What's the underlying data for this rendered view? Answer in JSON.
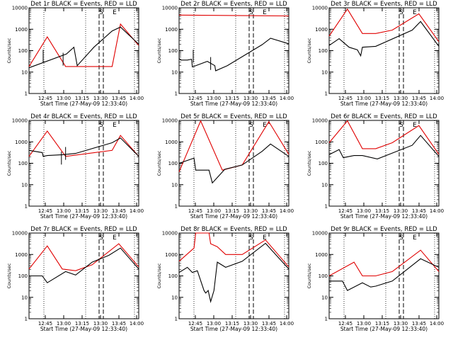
{
  "chart_data": [
    {
      "title": "Det 1r BLACK = Events, RED = LLD",
      "black": [
        [
          0,
          60
        ],
        [
          45,
          92
        ],
        [
          54,
          108
        ],
        [
          58,
          65
        ],
        [
          78,
          108
        ],
        [
          100,
          146
        ],
        [
          110,
          155
        ],
        [
          132,
          115
        ]
      ],
      "red": [
        [
          0,
          63
        ],
        [
          22,
          132
        ],
        [
          44,
          63
        ],
        [
          100,
          63
        ],
        [
          110,
          162
        ],
        [
          132,
          112
        ]
      ],
      "dips": [
        [
          17,
          72
        ],
        [
          41,
          65
        ]
      ]
    },
    {
      "title": "Det 2r BLACK = Events, RED = LLD",
      "black": [
        [
          0,
          82
        ],
        [
          2,
          78
        ],
        [
          10,
          78
        ],
        [
          15,
          80
        ],
        [
          16,
          62
        ],
        [
          34,
          75
        ],
        [
          43,
          65
        ],
        [
          44,
          53
        ],
        [
          58,
          65
        ],
        [
          100,
          114
        ],
        [
          110,
          129
        ],
        [
          132,
          116
        ]
      ],
      "red": [
        [
          0,
          183
        ],
        [
          132,
          181
        ]
      ],
      "dips": [
        [
          17,
          72
        ],
        [
          38,
          55
        ]
      ]
    },
    {
      "title": "Det 3r BLACK = Events, RED = LLD",
      "black": [
        [
          0,
          112
        ],
        [
          12,
          128
        ],
        [
          24,
          108
        ],
        [
          34,
          102
        ],
        [
          38,
          88
        ],
        [
          40,
          108
        ],
        [
          56,
          110
        ],
        [
          100,
          148
        ],
        [
          110,
          168
        ],
        [
          132,
          110
        ]
      ],
      "red": [
        [
          0,
          134
        ],
        [
          22,
          197
        ],
        [
          40,
          140
        ],
        [
          56,
          140
        ],
        [
          76,
          148
        ],
        [
          108,
          186
        ],
        [
          132,
          121
        ]
      ],
      "dips": []
    },
    {
      "title": "Det 4r BLACK = Events, RED = LLD",
      "black": [
        [
          0,
          130
        ],
        [
          16,
          125
        ],
        [
          17,
          116
        ],
        [
          22,
          118
        ],
        [
          40,
          120
        ],
        [
          56,
          123
        ],
        [
          100,
          148
        ],
        [
          110,
          159
        ],
        [
          132,
          116
        ]
      ],
      "red": [
        [
          0,
          116
        ],
        [
          22,
          175
        ],
        [
          44,
          116
        ],
        [
          100,
          130
        ],
        [
          110,
          165
        ],
        [
          132,
          116
        ]
      ],
      "dips": [
        [
          39,
          97
        ],
        [
          44,
          108
        ]
      ]
    },
    {
      "title": "Det 5r BLACK = Events, RED = LLD",
      "black": [
        [
          0,
          100
        ],
        [
          18,
          112
        ],
        [
          20,
          84
        ],
        [
          36,
          84
        ],
        [
          40,
          54
        ],
        [
          55,
          86
        ],
        [
          76,
          96
        ],
        [
          100,
          128
        ],
        [
          110,
          145
        ],
        [
          132,
          116
        ]
      ],
      "red": [
        [
          0,
          80
        ],
        [
          26,
          199
        ],
        [
          52,
          84
        ],
        [
          76,
          96
        ],
        [
          108,
          197
        ],
        [
          132,
          121
        ]
      ],
      "dips": []
    },
    {
      "title": "Det 6r BLACK = Events, RED = LLD",
      "black": [
        [
          0,
          120
        ],
        [
          12,
          132
        ],
        [
          17,
          113
        ],
        [
          30,
          118
        ],
        [
          40,
          118
        ],
        [
          58,
          110
        ],
        [
          100,
          142
        ],
        [
          110,
          165
        ],
        [
          132,
          116
        ]
      ],
      "red": [
        [
          0,
          148
        ],
        [
          22,
          199
        ],
        [
          40,
          134
        ],
        [
          56,
          134
        ],
        [
          76,
          148
        ],
        [
          108,
          188
        ],
        [
          132,
          121
        ]
      ],
      "dips": []
    },
    {
      "title": "Det 7r BLACK = Events, RED = LLD",
      "black": [
        [
          0,
          100
        ],
        [
          16,
          100
        ],
        [
          22,
          84
        ],
        [
          44,
          110
        ],
        [
          56,
          102
        ],
        [
          76,
          132
        ],
        [
          96,
          148
        ],
        [
          110,
          165
        ],
        [
          132,
          116
        ]
      ],
      "red": [
        [
          0,
          116
        ],
        [
          22,
          170
        ],
        [
          40,
          116
        ],
        [
          56,
          112
        ],
        [
          76,
          126
        ],
        [
          108,
          175
        ],
        [
          132,
          121
        ]
      ],
      "dips": []
    },
    {
      "title": "Det 8r BLACK = Events, RED = LLD",
      "black": [
        [
          0,
          108
        ],
        [
          10,
          120
        ],
        [
          16,
          108
        ],
        [
          22,
          112
        ],
        [
          30,
          66
        ],
        [
          32,
          60
        ],
        [
          35,
          66
        ],
        [
          38,
          40
        ],
        [
          42,
          66
        ],
        [
          46,
          132
        ],
        [
          56,
          120
        ],
        [
          76,
          134
        ],
        [
          104,
          176
        ],
        [
          132,
          116
        ]
      ],
      "red": [
        [
          0,
          134
        ],
        [
          18,
          165
        ],
        [
          20,
          200
        ],
        [
          36,
          200
        ],
        [
          38,
          175
        ],
        [
          46,
          168
        ],
        [
          56,
          150
        ],
        [
          76,
          150
        ],
        [
          104,
          184
        ],
        [
          132,
          121
        ]
      ],
      "dips": []
    },
    {
      "title": "Det 9r BLACK = Events, RED = LLD",
      "black": [
        [
          0,
          88
        ],
        [
          16,
          88
        ],
        [
          22,
          66
        ],
        [
          40,
          84
        ],
        [
          50,
          74
        ],
        [
          56,
          76
        ],
        [
          76,
          88
        ],
        [
          110,
          140
        ],
        [
          132,
          120
        ]
      ],
      "red": [
        [
          0,
          100
        ],
        [
          30,
          132
        ],
        [
          40,
          100
        ],
        [
          56,
          100
        ],
        [
          76,
          110
        ],
        [
          110,
          160
        ],
        [
          132,
          110
        ]
      ],
      "dips": []
    }
  ],
  "axes": {
    "xlabel": "Start Time (27-May-09 12:33:40)",
    "ylabel": "Counts/sec",
    "xticks": [
      "12:45",
      "13:00",
      "13:15",
      "13:30",
      "13:45",
      "14:00"
    ],
    "yticks": [
      "1",
      "10",
      "100",
      "1000",
      "10000"
    ],
    "ylim": [
      1,
      10000
    ],
    "yscale": "log",
    "markers": [
      "S",
      "E"
    ]
  },
  "colors": {
    "events": "#000000",
    "lld": "#e00000"
  }
}
